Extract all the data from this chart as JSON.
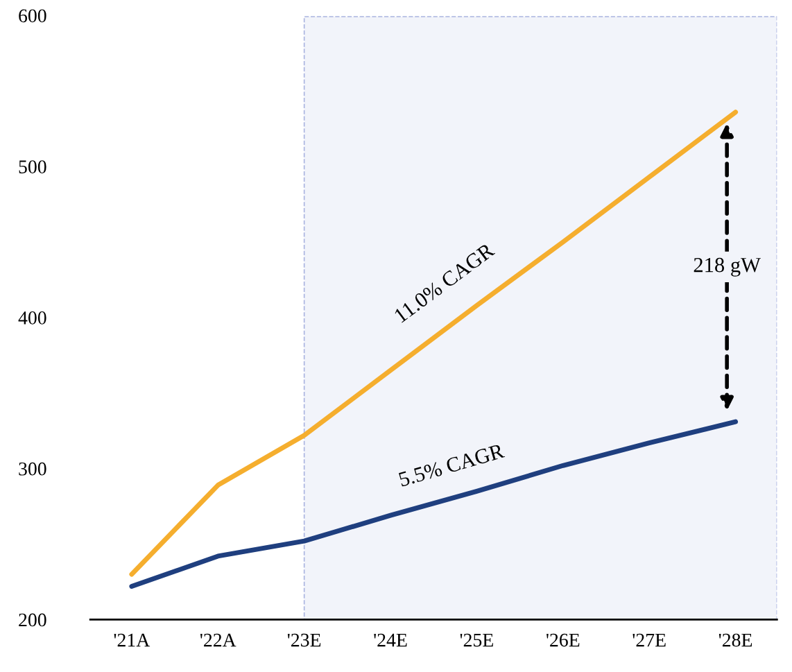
{
  "chart_data": {
    "type": "line",
    "categories": [
      "'21A",
      "'22A",
      "'23E",
      "'24E",
      "'25E",
      "'26E",
      "'27E",
      "'28E"
    ],
    "series": [
      {
        "color": "#f5ae2e",
        "values": [
          230,
          289,
          322,
          365,
          408,
          450,
          493,
          536
        ]
      },
      {
        "color": "#1f3f7f",
        "values": [
          222,
          242,
          252,
          269,
          285,
          302,
          317,
          331
        ]
      }
    ],
    "ylim": [
      200,
      600
    ],
    "yticks": [
      200,
      300,
      400,
      500,
      600
    ],
    "grid": false,
    "marker": "none",
    "line_style": "solid",
    "bands": [
      {
        "axis": "x",
        "from": "'23E",
        "to": "'28E",
        "color": "#f2f4fa"
      }
    ],
    "annotations": [
      {
        "text": "11.0% CAGR",
        "x": "'25E",
        "y": 408
      },
      {
        "text": "5.5% CAGR",
        "x": "'25E",
        "y": 285
      },
      "218 gW"
    ]
  }
}
